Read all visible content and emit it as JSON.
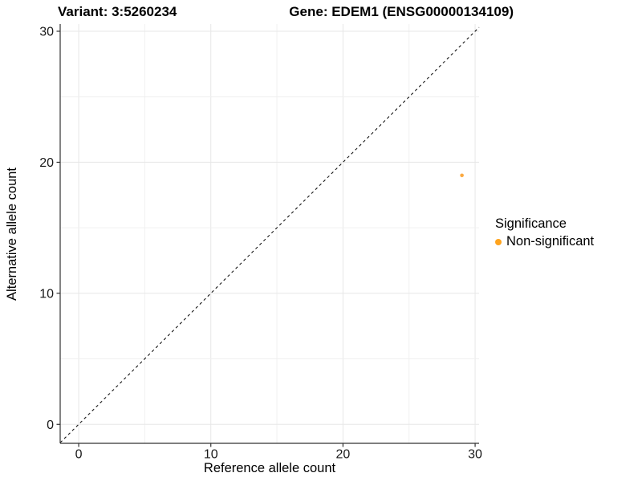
{
  "chart_data": {
    "type": "scatter",
    "title_parts": [
      "Variant: 3:5260234",
      "Gene: EDEM1 (ENSG00000134109)"
    ],
    "xlabel": "Reference allele count",
    "ylabel": "Alternative allele count",
    "xlim": [
      -1.4,
      30.3
    ],
    "ylim": [
      -1.45,
      30.55
    ],
    "x_ticks": [
      0,
      10,
      20,
      30
    ],
    "y_ticks": [
      0,
      10,
      20,
      30
    ],
    "grid": {
      "on": true,
      "major_step": 10,
      "minor_step": 5,
      "major_color": "#e7e7e7",
      "minor_color": "#f0f0f0"
    },
    "identity_line": {
      "slope": 1,
      "intercept": 0,
      "style": "dashed",
      "color": "#000000"
    },
    "legend": {
      "position": "right",
      "title": "Significance",
      "items": [
        {
          "label": "Non-significant",
          "color": "#FFA41E"
        }
      ]
    },
    "series": [
      {
        "name": "Non-significant",
        "color": "#FBAA42",
        "points": [
          [
            29,
            19
          ]
        ]
      }
    ]
  },
  "colors": {
    "axis_line": "#333333",
    "tick_mark": "#333333",
    "tick_label": "#1a1a1a",
    "background": "#ffffff"
  }
}
